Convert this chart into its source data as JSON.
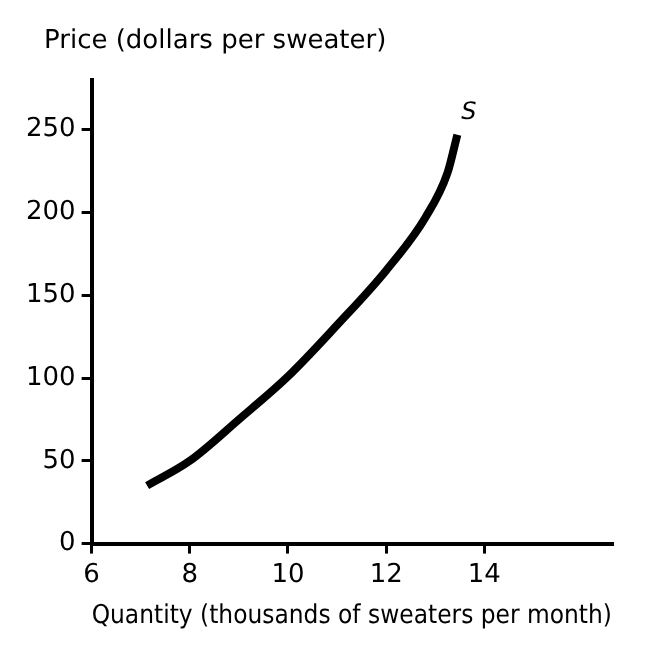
{
  "chart_data": {
    "type": "line",
    "xlabel": "Quantity (thousands of sweaters per month)",
    "ylabel": "Price (dollars per sweater)",
    "series": [
      {
        "name": "S",
        "color": "#000000",
        "x": [
          7.13,
          8,
          9,
          10,
          11,
          12,
          12.8,
          13.25,
          13.45
        ],
        "values": [
          35,
          50,
          75,
          101,
          132,
          165,
          197,
          224,
          247
        ]
      }
    ],
    "xlim": [
      6,
      16.6
    ],
    "xticks": [
      6,
      8,
      10,
      12,
      14
    ],
    "ylim": [
      0,
      280
    ],
    "yticks": [
      0,
      50,
      100,
      150,
      200,
      250
    ],
    "grid": false,
    "legend": false,
    "marker": "none",
    "line_style": "solid"
  }
}
